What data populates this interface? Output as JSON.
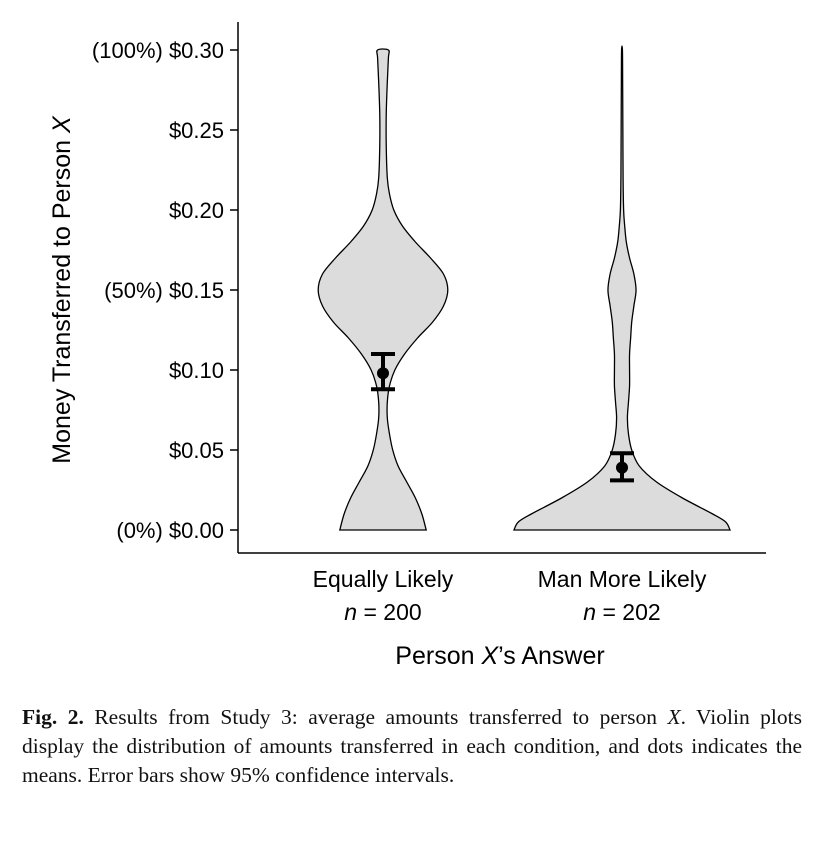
{
  "chart_data": {
    "type": "violin",
    "xlabel": {
      "before": "Person ",
      "italic": "X",
      "after": "’s Answer"
    },
    "ylabel": {
      "before": "Money Transferred to Person ",
      "italic": "X"
    },
    "ylim": [
      0,
      0.3
    ],
    "yticks": [
      {
        "value": 0.0,
        "label": "(0%) $0.00"
      },
      {
        "value": 0.05,
        "label": "$0.05"
      },
      {
        "value": 0.1,
        "label": "$0.10"
      },
      {
        "value": 0.15,
        "label": "(50%) $0.15"
      },
      {
        "value": 0.2,
        "label": "$0.20"
      },
      {
        "value": 0.25,
        "label": "$0.25"
      },
      {
        "value": 0.3,
        "label": "(100%) $0.30"
      }
    ],
    "fill_color": "#dcdcdc",
    "groups": [
      {
        "label": "Equally Likely",
        "n_prefix": "n",
        "n_text": " = 200",
        "mean": 0.098,
        "ci": [
          0.088,
          0.11
        ],
        "density": [
          [
            0.0,
            0.4
          ],
          [
            0.01,
            0.36
          ],
          [
            0.02,
            0.3
          ],
          [
            0.03,
            0.22
          ],
          [
            0.04,
            0.14
          ],
          [
            0.05,
            0.09
          ],
          [
            0.06,
            0.06
          ],
          [
            0.07,
            0.04
          ],
          [
            0.08,
            0.04
          ],
          [
            0.09,
            0.06
          ],
          [
            0.1,
            0.11
          ],
          [
            0.11,
            0.2
          ],
          [
            0.12,
            0.32
          ],
          [
            0.13,
            0.46
          ],
          [
            0.14,
            0.56
          ],
          [
            0.15,
            0.6
          ],
          [
            0.16,
            0.56
          ],
          [
            0.17,
            0.44
          ],
          [
            0.18,
            0.3
          ],
          [
            0.19,
            0.18
          ],
          [
            0.2,
            0.1
          ],
          [
            0.21,
            0.06
          ],
          [
            0.22,
            0.04
          ],
          [
            0.24,
            0.03
          ],
          [
            0.26,
            0.03
          ],
          [
            0.28,
            0.04
          ],
          [
            0.295,
            0.05
          ],
          [
            0.3,
            0.05
          ]
        ]
      },
      {
        "label": "Man More Likely",
        "n_prefix": "n",
        "n_text": " = 202",
        "mean": 0.039,
        "ci": [
          0.031,
          0.048
        ],
        "density": [
          [
            0.0,
            1.0
          ],
          [
            0.005,
            0.96
          ],
          [
            0.01,
            0.84
          ],
          [
            0.02,
            0.56
          ],
          [
            0.03,
            0.32
          ],
          [
            0.04,
            0.16
          ],
          [
            0.05,
            0.09
          ],
          [
            0.06,
            0.06
          ],
          [
            0.07,
            0.05
          ],
          [
            0.08,
            0.06
          ],
          [
            0.09,
            0.07
          ],
          [
            0.1,
            0.07
          ],
          [
            0.11,
            0.07
          ],
          [
            0.12,
            0.08
          ],
          [
            0.13,
            0.09
          ],
          [
            0.14,
            0.11
          ],
          [
            0.15,
            0.13
          ],
          [
            0.16,
            0.11
          ],
          [
            0.17,
            0.07
          ],
          [
            0.18,
            0.04
          ],
          [
            0.19,
            0.025
          ],
          [
            0.2,
            0.015
          ],
          [
            0.22,
            0.01
          ],
          [
            0.25,
            0.008
          ],
          [
            0.28,
            0.006
          ],
          [
            0.3,
            0.004
          ]
        ]
      }
    ]
  },
  "caption": {
    "label": "Fig. 2.",
    "text_before": " Results from Study 3: average amounts transferred to person ",
    "italic": "X",
    "text_after": ". Violin plots display the distribution of amounts transferred in each condition, and dots indicates the means. Error bars show 95% confidence intervals."
  }
}
